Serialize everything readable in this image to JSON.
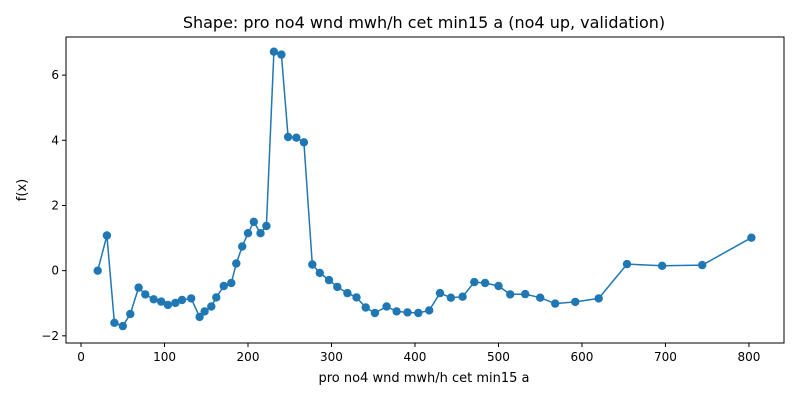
{
  "chart_data": {
    "type": "line",
    "title": "Shape: pro no4 wnd mwh/h cet min15 a (no4 up, validation)",
    "xlabel": "pro no4 wnd mwh/h cet min15 a",
    "ylabel": "f(x)",
    "xlim": [
      -18,
      842
    ],
    "ylim": [
      -2.22,
      7.17
    ],
    "xticks": [
      0,
      100,
      200,
      300,
      400,
      500,
      600,
      700,
      800
    ],
    "yticks": [
      -2,
      0,
      2,
      4,
      6
    ],
    "grid": false,
    "color": "#1f77b4",
    "marker": "circle",
    "series": [
      {
        "x": [
          20,
          31,
          40,
          50,
          59,
          69,
          77,
          87,
          96,
          104,
          113,
          121,
          132,
          142,
          148,
          156,
          162,
          171,
          180,
          186,
          193,
          200,
          207,
          215,
          222,
          231,
          240,
          248,
          258,
          267,
          277,
          286,
          297,
          307,
          319,
          330,
          341,
          352,
          366,
          378,
          391,
          404,
          417,
          430,
          443,
          457,
          471,
          484,
          500,
          514,
          532,
          550,
          568,
          592,
          620,
          654,
          696,
          744,
          803
        ],
        "y": [
          0.0,
          1.08,
          -1.6,
          -1.7,
          -1.33,
          -0.52,
          -0.73,
          -0.88,
          -0.95,
          -1.05,
          -0.99,
          -0.9,
          -0.85,
          -1.42,
          -1.25,
          -1.1,
          -0.82,
          -0.47,
          -0.38,
          0.22,
          0.74,
          1.15,
          1.5,
          1.15,
          1.37,
          6.72,
          6.63,
          4.1,
          4.08,
          3.94,
          0.19,
          -0.07,
          -0.29,
          -0.5,
          -0.69,
          -0.82,
          -1.13,
          -1.3,
          -1.1,
          -1.25,
          -1.28,
          -1.3,
          -1.22,
          -0.69,
          -0.83,
          -0.8,
          -0.35,
          -0.38,
          -0.47,
          -0.73,
          -0.72,
          -0.83,
          -1.01,
          -0.96,
          -0.85,
          0.2,
          0.15,
          0.17,
          1.01
        ]
      }
    ]
  }
}
